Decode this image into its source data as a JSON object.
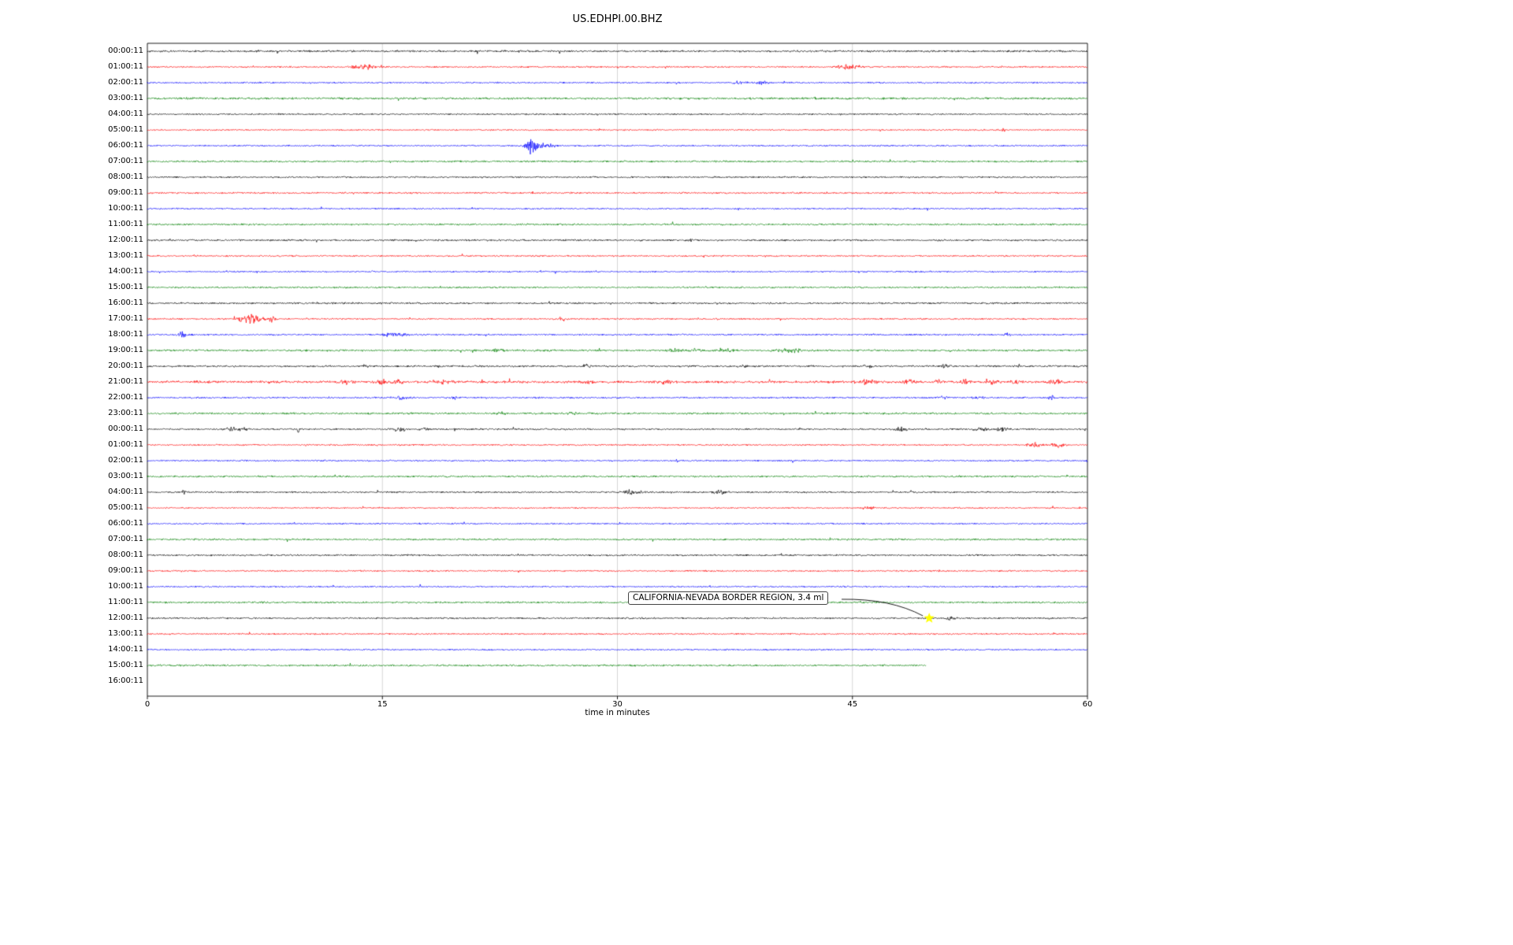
{
  "title": "US.EDHPI.00.BHZ",
  "axis": {
    "xlabel": "time in minutes",
    "xticks": [
      0,
      15,
      30,
      45,
      60
    ],
    "xmin": 0,
    "xmax": 60
  },
  "annotation": {
    "text": "CALIFORNIA-NEVADA BORDER REGION, 3.4 ml"
  },
  "colors": {
    "trace_cycle": [
      "#000000",
      "#ff0000",
      "#0000ff",
      "#008000"
    ],
    "grid": "#cccccc",
    "frame": "#000000",
    "star": "#ffff00"
  },
  "chart_data": {
    "type": "line",
    "subtype": "helicorder-seismogram",
    "station": "US.EDHPI.00.BHZ",
    "xlabel": "time in minutes",
    "x_range_minutes": [
      0,
      60
    ],
    "xticks": [
      0,
      15,
      30,
      45,
      60
    ],
    "grid_xticks": [
      15,
      30,
      45
    ],
    "row_color_cycle": [
      "#000000",
      "#ff0000",
      "#0000ff",
      "#008000"
    ],
    "event_marker": {
      "row": 36,
      "t": 49.9,
      "label": "CALIFORNIA-NEVADA BORDER REGION, 3.4 ml",
      "magnitude": "3.4 ml",
      "region": "CALIFORNIA-NEVADA BORDER REGION",
      "star_color": "#ffff00"
    },
    "rows": [
      {
        "label": "00:00:11",
        "color": "#000000",
        "base": 1.4,
        "end": 60,
        "events": []
      },
      {
        "label": "01:00:11",
        "color": "#ff0000",
        "base": 1.1,
        "end": 60,
        "events": [
          [
            13.5,
            4,
            0.5
          ],
          [
            14.2,
            2.5,
            0.3
          ],
          [
            44.6,
            4.5,
            0.5
          ],
          [
            45.4,
            2.5,
            0.3
          ]
        ]
      },
      {
        "label": "02:00:11",
        "color": "#0000ff",
        "base": 1.1,
        "end": 60,
        "events": [
          [
            37.8,
            2.2,
            0.4
          ],
          [
            39.2,
            2.6,
            0.35
          ]
        ]
      },
      {
        "label": "03:00:11",
        "color": "#008000",
        "base": 1.5,
        "end": 60,
        "events": []
      },
      {
        "label": "04:00:11",
        "color": "#000000",
        "base": 1.1,
        "end": 60,
        "events": []
      },
      {
        "label": "05:00:11",
        "color": "#ff0000",
        "base": 1.0,
        "end": 60,
        "events": [
          [
            54.6,
            1.8,
            0.25
          ]
        ]
      },
      {
        "label": "06:00:11",
        "color": "#0000ff",
        "base": 1.1,
        "end": 60,
        "events": [
          [
            24.5,
            13,
            0.3
          ],
          [
            25.3,
            3.5,
            0.7
          ]
        ]
      },
      {
        "label": "07:00:11",
        "color": "#008000",
        "base": 1.3,
        "end": 60,
        "events": []
      },
      {
        "label": "08:00:11",
        "color": "#000000",
        "base": 1.2,
        "end": 60,
        "events": []
      },
      {
        "label": "09:00:11",
        "color": "#ff0000",
        "base": 1.2,
        "end": 60,
        "events": []
      },
      {
        "label": "10:00:11",
        "color": "#0000ff",
        "base": 1.1,
        "end": 60,
        "events": []
      },
      {
        "label": "11:00:11",
        "color": "#008000",
        "base": 1.3,
        "end": 60,
        "events": []
      },
      {
        "label": "12:00:11",
        "color": "#000000",
        "base": 1.3,
        "end": 60,
        "events": [
          [
            34.6,
            1.8,
            0.3
          ]
        ]
      },
      {
        "label": "13:00:11",
        "color": "#ff0000",
        "base": 1.1,
        "end": 60,
        "events": []
      },
      {
        "label": "14:00:11",
        "color": "#0000ff",
        "base": 1.1,
        "end": 60,
        "events": []
      },
      {
        "label": "15:00:11",
        "color": "#008000",
        "base": 1.2,
        "end": 60,
        "events": []
      },
      {
        "label": "16:00:11",
        "color": "#000000",
        "base": 1.3,
        "end": 60,
        "events": []
      },
      {
        "label": "17:00:11",
        "color": "#ff0000",
        "base": 1.1,
        "end": 60,
        "events": [
          [
            6.3,
            6.5,
            0.5
          ],
          [
            7.1,
            4.5,
            0.5
          ],
          [
            7.9,
            3.5,
            0.3
          ],
          [
            26.4,
            2.8,
            0.3
          ]
        ]
      },
      {
        "label": "18:00:11",
        "color": "#0000ff",
        "base": 1.2,
        "end": 60,
        "events": [
          [
            2.2,
            5.5,
            0.2
          ],
          [
            15.6,
            2.8,
            0.5
          ],
          [
            16.4,
            2.4,
            0.25
          ],
          [
            54.9,
            2.2,
            0.2
          ]
        ]
      },
      {
        "label": "19:00:11",
        "color": "#008000",
        "base": 1.4,
        "end": 60,
        "events": [
          [
            22.4,
            2.2,
            0.3
          ],
          [
            33.6,
            2.4,
            0.4
          ],
          [
            35.0,
            2.0,
            0.4
          ],
          [
            37.0,
            2.0,
            0.4
          ],
          [
            40.6,
            2.8,
            0.5
          ],
          [
            41.4,
            2.4,
            0.3
          ]
        ]
      },
      {
        "label": "20:00:11",
        "color": "#000000",
        "base": 1.3,
        "end": 60,
        "events": [
          [
            13.9,
            2.4,
            0.2
          ],
          [
            18.6,
            3,
            0.12
          ],
          [
            28,
            2.4,
            0.2
          ],
          [
            38,
            2,
            0.2
          ],
          [
            46,
            2,
            0.25
          ],
          [
            51,
            2.4,
            0.3
          ],
          [
            55.6,
            2,
            0.25
          ]
        ]
      },
      {
        "label": "21:00:11",
        "color": "#ff0000",
        "base": 1.7,
        "end": 60,
        "events": [
          [
            12.6,
            2.8,
            0.5
          ],
          [
            14.9,
            3.2,
            0.4
          ],
          [
            16,
            2.4,
            0.4
          ],
          [
            18.9,
            2.4,
            0.5
          ],
          [
            28.1,
            3.2,
            0.25
          ],
          [
            33,
            2,
            0.4
          ],
          [
            45.9,
            2.8,
            0.6
          ],
          [
            48.6,
            2.4,
            0.4
          ],
          [
            50.5,
            2,
            0.3
          ],
          [
            52.2,
            2.8,
            0.3
          ],
          [
            54.1,
            3.2,
            0.3
          ],
          [
            55.5,
            2.4,
            0.3
          ],
          [
            57.9,
            3.2,
            0.4
          ]
        ]
      },
      {
        "label": "22:00:11",
        "color": "#0000ff",
        "base": 1.2,
        "end": 60,
        "events": [
          [
            16.1,
            2.4,
            0.5
          ],
          [
            19.6,
            2,
            0.3
          ],
          [
            50.9,
            2.4,
            0.3
          ],
          [
            53,
            2,
            0.3
          ],
          [
            57.7,
            6.5,
            0.15
          ]
        ]
      },
      {
        "label": "23:00:11",
        "color": "#008000",
        "base": 1.4,
        "end": 60,
        "events": [
          [
            22.6,
            1.8,
            0.3
          ],
          [
            27.1,
            1.6,
            0.3
          ]
        ]
      },
      {
        "label": "00:00:11",
        "color": "#000000",
        "base": 1.2,
        "end": 60,
        "events": [
          [
            5.4,
            2.4,
            0.4
          ],
          [
            6.2,
            2,
            0.3
          ],
          [
            9.6,
            7.5,
            0.1
          ],
          [
            16.1,
            2.4,
            0.5
          ],
          [
            17.6,
            2,
            0.3
          ],
          [
            48.1,
            2.4,
            0.5
          ],
          [
            53.1,
            2,
            0.6
          ],
          [
            54.6,
            2.4,
            0.4
          ]
        ]
      },
      {
        "label": "01:00:11",
        "color": "#ff0000",
        "base": 1.1,
        "end": 60,
        "events": [
          [
            56.6,
            3.5,
            0.4
          ],
          [
            58.1,
            3,
            0.4
          ]
        ]
      },
      {
        "label": "02:00:11",
        "color": "#0000ff",
        "base": 1.1,
        "end": 60,
        "events": []
      },
      {
        "label": "03:00:11",
        "color": "#008000",
        "base": 1.3,
        "end": 60,
        "events": []
      },
      {
        "label": "04:00:11",
        "color": "#000000",
        "base": 1.2,
        "end": 60,
        "events": [
          [
            2.35,
            5.5,
            0.1
          ],
          [
            30.9,
            3.2,
            0.6
          ],
          [
            36.6,
            2.8,
            0.5
          ]
        ]
      },
      {
        "label": "05:00:11",
        "color": "#ff0000",
        "base": 1.0,
        "end": 60,
        "events": [
          [
            46.1,
            1.8,
            0.3
          ]
        ]
      },
      {
        "label": "06:00:11",
        "color": "#0000ff",
        "base": 1.1,
        "end": 60,
        "events": []
      },
      {
        "label": "07:00:11",
        "color": "#008000",
        "base": 1.3,
        "end": 60,
        "events": []
      },
      {
        "label": "08:00:11",
        "color": "#000000",
        "base": 1.2,
        "end": 60,
        "events": []
      },
      {
        "label": "09:00:11",
        "color": "#ff0000",
        "base": 1.1,
        "end": 60,
        "events": []
      },
      {
        "label": "10:00:11",
        "color": "#0000ff",
        "base": 1.1,
        "end": 60,
        "events": []
      },
      {
        "label": "11:00:11",
        "color": "#008000",
        "base": 1.3,
        "end": 60,
        "events": []
      },
      {
        "label": "12:00:11",
        "color": "#000000",
        "base": 1.2,
        "end": 60,
        "events": [
          [
            51.3,
            2.8,
            0.3
          ]
        ]
      },
      {
        "label": "13:00:11",
        "color": "#ff0000",
        "base": 1.1,
        "end": 60,
        "events": []
      },
      {
        "label": "14:00:11",
        "color": "#0000ff",
        "base": 1.1,
        "end": 60,
        "events": []
      },
      {
        "label": "15:00:11",
        "color": "#008000",
        "base": 1.3,
        "end": 49.7,
        "events": []
      },
      {
        "label": "16:00:11",
        "color": "#000000",
        "base": 0,
        "end": 0,
        "events": []
      }
    ]
  }
}
